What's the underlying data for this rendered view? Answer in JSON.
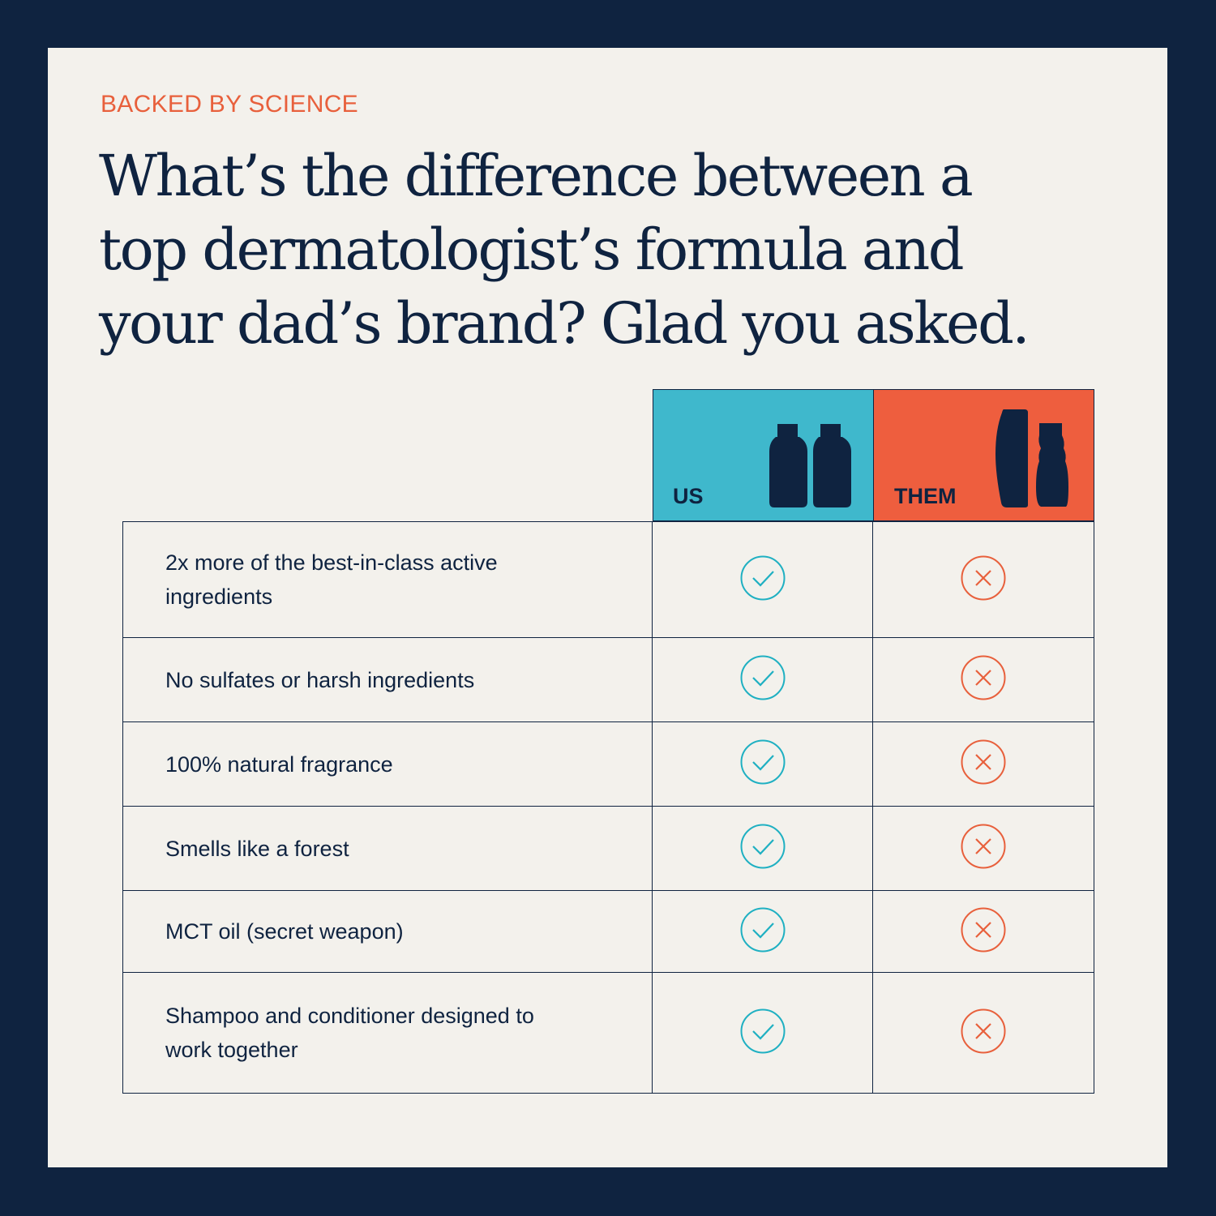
{
  "eyebrow": "BACKED BY SCIENCE",
  "headline": "What’s the difference between a top dermatologist’s formula and your dad’s brand? Glad you asked.",
  "columns": {
    "us": {
      "label": "US",
      "color": "#3fb8cc",
      "icon": "two-round-bottles-icon"
    },
    "them": {
      "label": "THEM",
      "color": "#ee5e3e",
      "icon": "curved-bottles-icon"
    }
  },
  "colors": {
    "background": "#0f2340",
    "card": "#f3f1ec",
    "check": "#1fb0c2",
    "cross": "#e8603c"
  },
  "rows": [
    {
      "feature": "2x more of the best-in-class active ingredients",
      "us": "check",
      "them": "cross"
    },
    {
      "feature": "No sulfates or harsh ingredients",
      "us": "check",
      "them": "cross"
    },
    {
      "feature": "100% natural fragrance",
      "us": "check",
      "them": "cross"
    },
    {
      "feature": "Smells like a forest",
      "us": "check",
      "them": "cross"
    },
    {
      "feature": "MCT oil (secret weapon)",
      "us": "check",
      "them": "cross"
    },
    {
      "feature": "Shampoo and conditioner designed to work together",
      "us": "check",
      "them": "cross"
    }
  ]
}
